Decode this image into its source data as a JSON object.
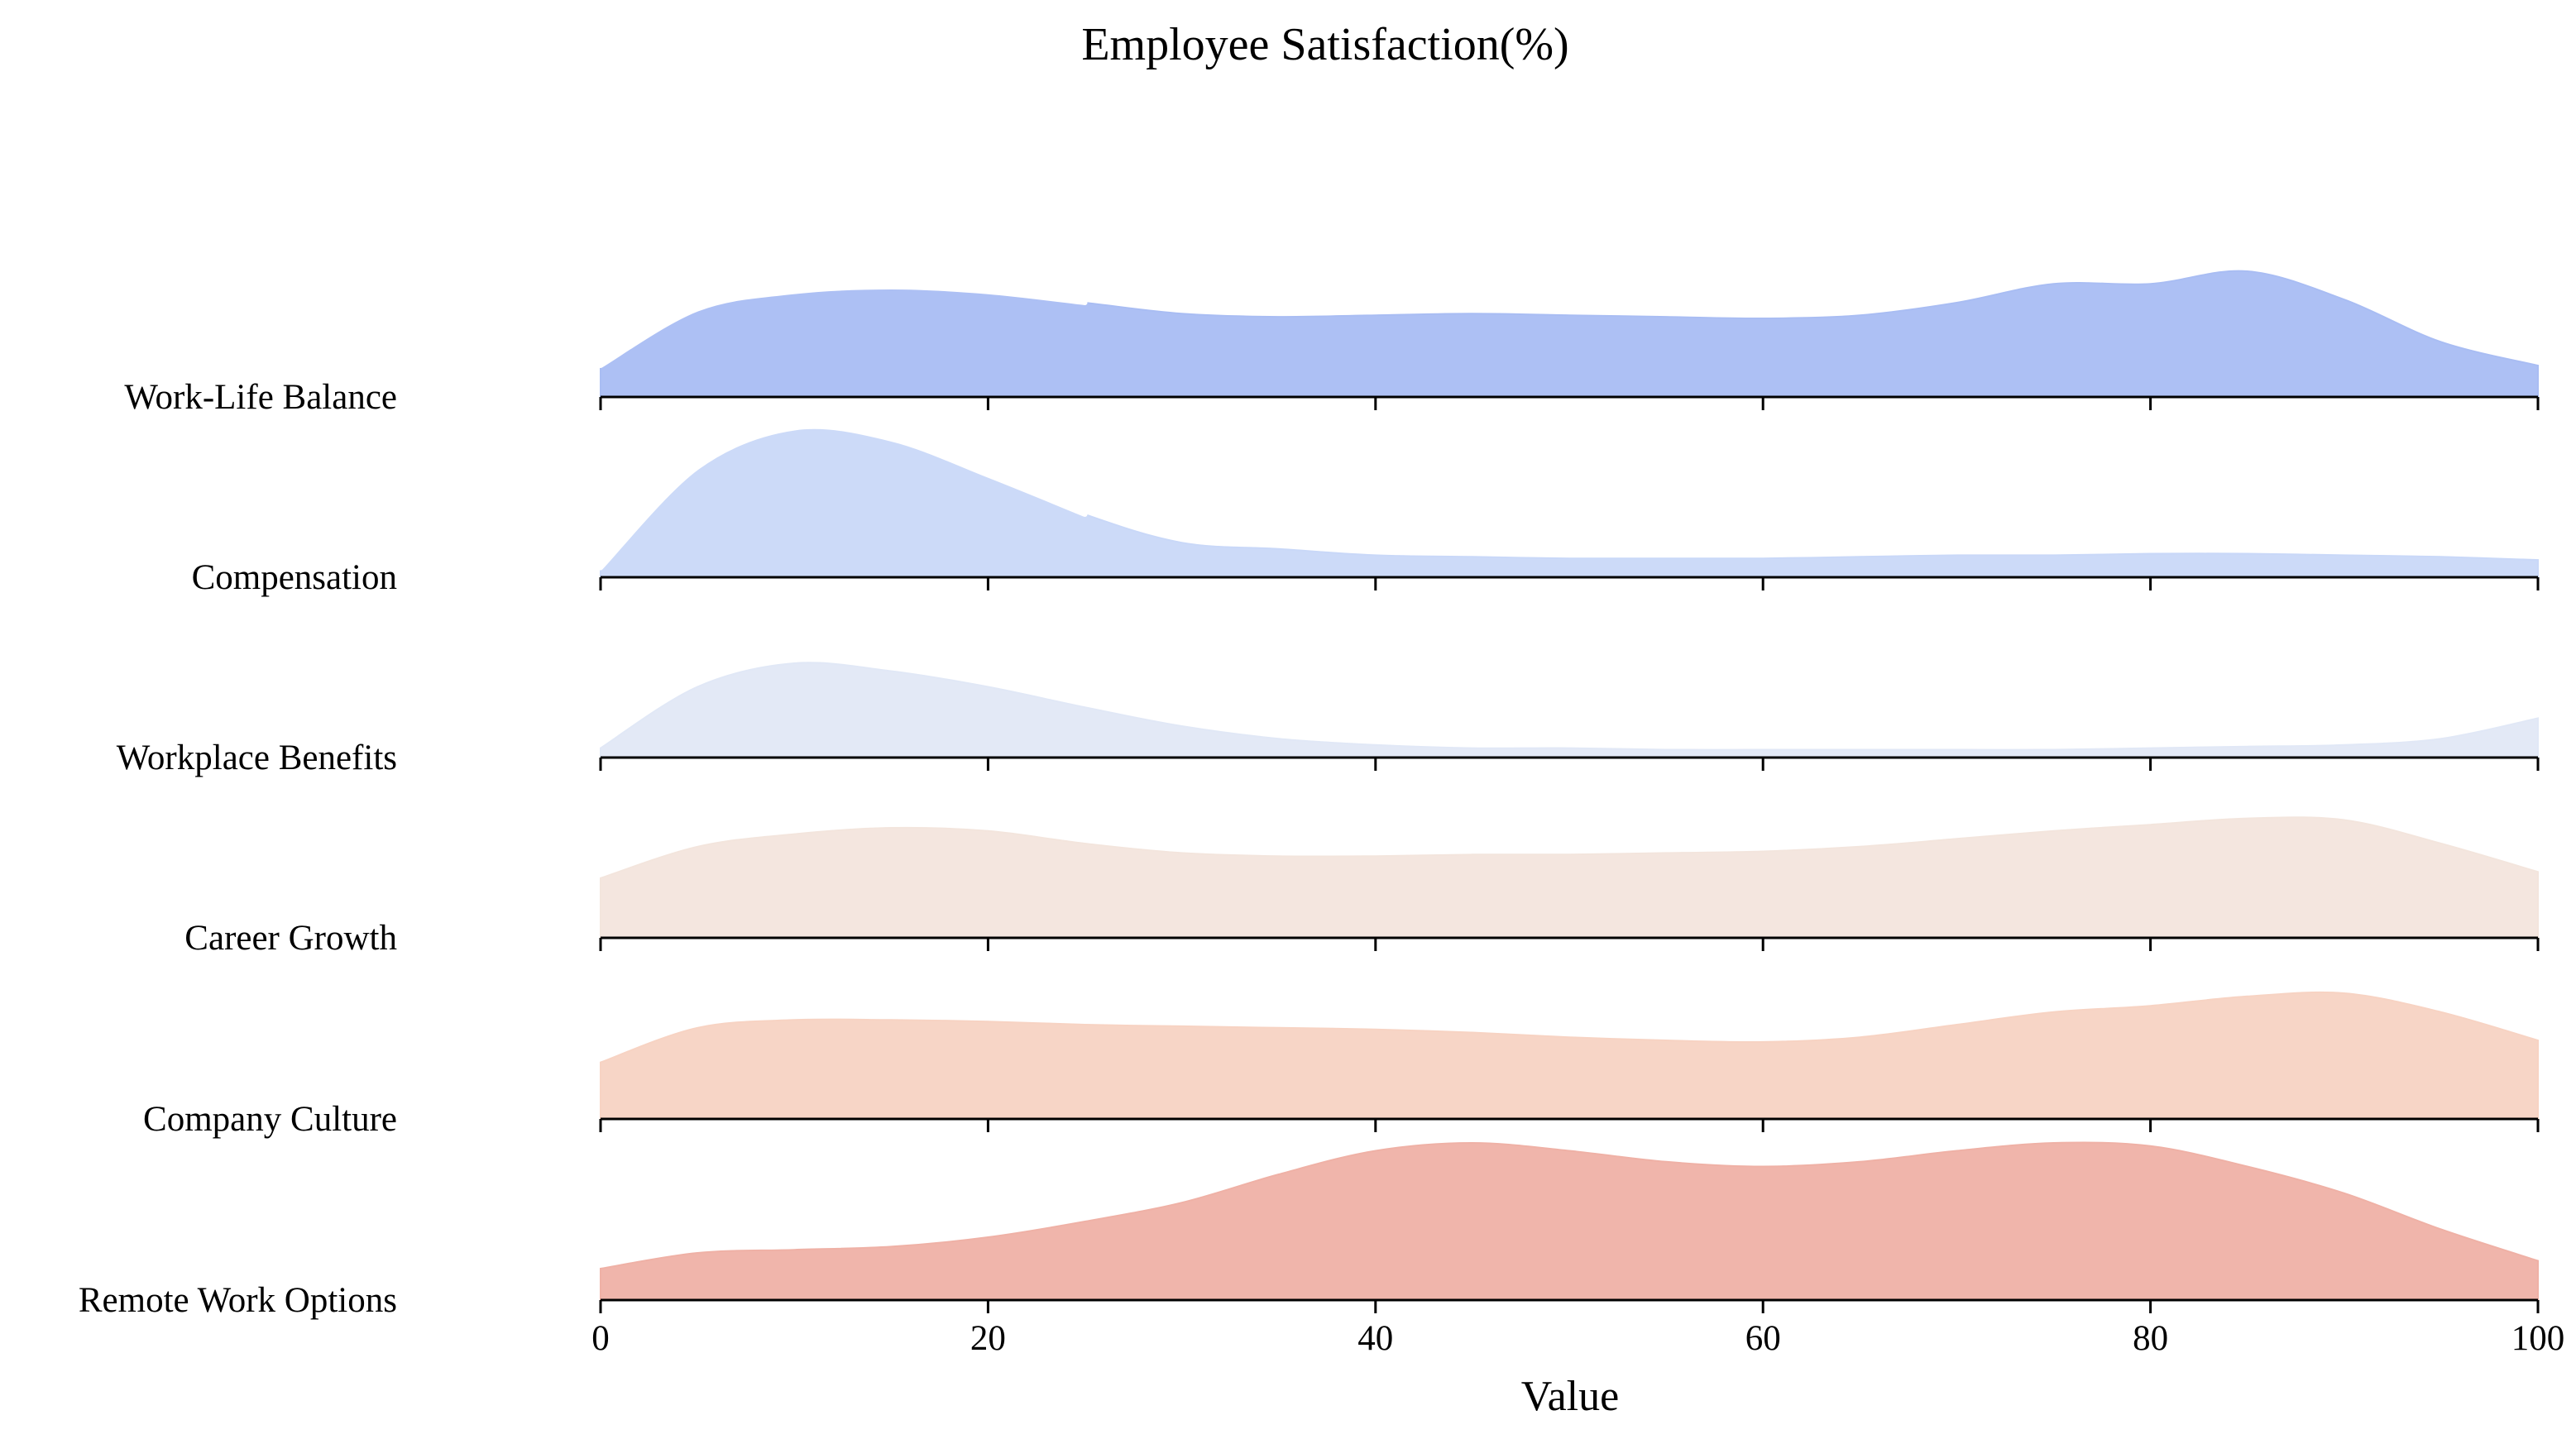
{
  "chart_data": {
    "type": "area",
    "subtype": "ridgeline",
    "title": "Employee Satisfaction(%)",
    "xlabel": "Value",
    "ylabel": "",
    "xlim": [
      0,
      100
    ],
    "x_ticks": [
      0,
      20,
      40,
      60,
      80,
      100
    ],
    "grid": false,
    "legend": "none",
    "x": [
      0,
      5,
      10,
      15,
      20,
      25,
      30,
      35,
      40,
      45,
      50,
      55,
      60,
      65,
      70,
      75,
      80,
      85,
      90,
      95,
      100
    ],
    "series": [
      {
        "name": "Work-Life Balance",
        "color": "#a9bdf3",
        "values": [
          0.2,
          0.56,
          0.67,
          0.7,
          0.67,
          0.6,
          0.53,
          0.51,
          0.52,
          0.53,
          0.52,
          0.51,
          0.5,
          0.52,
          0.6,
          0.72,
          0.72,
          0.8,
          0.62,
          0.35,
          0.2
        ]
      },
      {
        "name": "Compensation",
        "color": "#c9d8f8",
        "values": [
          0.06,
          0.7,
          0.95,
          0.88,
          0.65,
          0.4,
          0.22,
          0.18,
          0.14,
          0.13,
          0.12,
          0.12,
          0.12,
          0.13,
          0.14,
          0.14,
          0.15,
          0.15,
          0.14,
          0.13,
          0.11
        ]
      },
      {
        "name": "Workplace Benefits",
        "color": "#e1e8f6",
        "values": [
          0.06,
          0.45,
          0.6,
          0.55,
          0.45,
          0.32,
          0.2,
          0.12,
          0.08,
          0.06,
          0.06,
          0.05,
          0.05,
          0.05,
          0.05,
          0.05,
          0.06,
          0.07,
          0.08,
          0.12,
          0.25
        ]
      },
      {
        "name": "Career Growth",
        "color": "#f3e5dd",
        "values": [
          0.38,
          0.58,
          0.66,
          0.7,
          0.68,
          0.6,
          0.54,
          0.52,
          0.52,
          0.53,
          0.53,
          0.54,
          0.55,
          0.58,
          0.63,
          0.68,
          0.72,
          0.76,
          0.75,
          0.6,
          0.42
        ]
      },
      {
        "name": "Company Culture",
        "color": "#f7d3c3",
        "values": [
          0.36,
          0.58,
          0.63,
          0.63,
          0.62,
          0.6,
          0.59,
          0.58,
          0.57,
          0.55,
          0.52,
          0.5,
          0.49,
          0.52,
          0.6,
          0.68,
          0.72,
          0.78,
          0.8,
          0.68,
          0.5
        ]
      },
      {
        "name": "Remote Work Options",
        "color": "#efb1a6",
        "values": [
          0.2,
          0.3,
          0.32,
          0.34,
          0.4,
          0.5,
          0.62,
          0.8,
          0.95,
          1.0,
          0.95,
          0.88,
          0.85,
          0.88,
          0.95,
          1.0,
          0.98,
          0.85,
          0.68,
          0.45,
          0.25
        ]
      }
    ],
    "overlay_lines": [
      {
        "series": "Work-Life Balance",
        "color": "#ffffff"
      },
      {
        "series": "Compensation",
        "color": "#ffffff"
      }
    ]
  }
}
